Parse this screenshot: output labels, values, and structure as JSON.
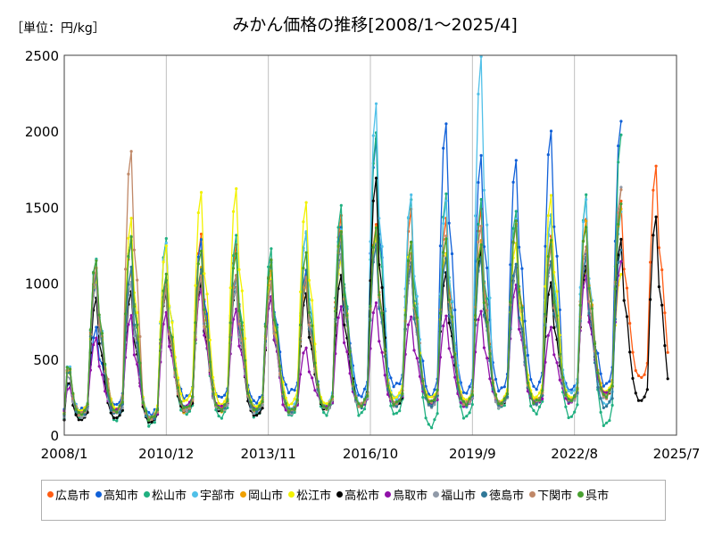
{
  "chart_data": {
    "type": "line",
    "title": "みかん価格の推移[2008/1～2025/4]",
    "unit_label": "［単位：円/kg］",
    "y_ticks": [
      "0",
      "500",
      "1000",
      "1500",
      "2000",
      "2500"
    ],
    "x_ticks": [
      "2008/1",
      "2010/12",
      "2013/11",
      "2016/10",
      "2019/9",
      "2022/8",
      "2025/7"
    ],
    "ylim": [
      0,
      2500
    ],
    "grid": "vertical",
    "legend_position": "bottom",
    "series_shape": "seasonal peaks each Oct-Nov, troughs in summer",
    "series": [
      {
        "name": "広島市",
        "color": "#ff5b12",
        "peaks": [
          1100,
          1280,
          1000,
          1320,
          1250,
          1150,
          1080,
          1440,
          1380,
          1480,
          1420,
          1480,
          1400,
          1300,
          1410,
          1530,
          1760
        ],
        "troughs": [
          140,
          150,
          110,
          180,
          170,
          170,
          150,
          170,
          190,
          210,
          220,
          230,
          210,
          220,
          230,
          260,
          380
        ]
      },
      {
        "name": "高知市",
        "color": "#1060d8",
        "peaks": [
          700,
          1290,
          960,
          1280,
          1060,
          1130,
          1080,
          1380,
          1940,
          1270,
          2060,
          1830,
          1810,
          2010,
          1180,
          2070,
          null
        ],
        "troughs": [
          170,
          200,
          140,
          250,
          250,
          220,
          290,
          200,
          260,
          330,
          260,
          280,
          300,
          310,
          300,
          330,
          null
        ]
      },
      {
        "name": "松山市",
        "color": "#20b080",
        "peaks": [
          1170,
          1300,
          1290,
          1000,
          1310,
          1220,
          1340,
          1510,
          1980,
          1560,
          1590,
          1540,
          1480,
          1450,
          1570,
          1980,
          null
        ],
        "troughs": [
          110,
          100,
          70,
          140,
          120,
          130,
          130,
          140,
          140,
          140,
          60,
          120,
          180,
          150,
          120,
          70,
          null
        ]
      },
      {
        "name": "宇部市",
        "color": "#50c0e8",
        "peaks": [
          1150,
          1280,
          1260,
          1030,
          1020,
          1010,
          1330,
          1340,
          2170,
          1570,
          1530,
          2480,
          1410,
          1440,
          1540,
          1460,
          null
        ],
        "troughs": [
          150,
          160,
          120,
          180,
          170,
          190,
          180,
          200,
          200,
          240,
          210,
          190,
          210,
          220,
          280,
          200,
          null
        ]
      },
      {
        "name": "岡山市",
        "color": "#f0a000",
        "peaks": [
          1050,
          1090,
          950,
          1100,
          1060,
          1070,
          1000,
          1350,
          1360,
          1200,
          1200,
          1270,
          1400,
          1270,
          1400,
          1500,
          null
        ],
        "troughs": [
          150,
          180,
          110,
          160,
          160,
          150,
          160,
          180,
          190,
          200,
          210,
          200,
          210,
          230,
          220,
          280,
          null
        ]
      },
      {
        "name": "松江市",
        "color": "#f2f200",
        "peaks": [
          1030,
          1420,
          1240,
          1610,
          1620,
          1010,
          1540,
          1170,
          1300,
          1270,
          1200,
          1180,
          1260,
          1590,
          1100,
          1050,
          null
        ],
        "troughs": [
          150,
          180,
          120,
          220,
          200,
          200,
          200,
          200,
          210,
          250,
          240,
          240,
          230,
          240,
          250,
          300,
          null
        ]
      },
      {
        "name": "高松市",
        "color": "#000000",
        "peaks": [
          900,
          940,
          930,
          1000,
          960,
          900,
          920,
          1040,
          1680,
          1100,
          1060,
          1210,
          1100,
          1000,
          1110,
          1290,
          1440
        ],
        "troughs": [
          100,
          110,
          80,
          150,
          150,
          120,
          150,
          160,
          180,
          180,
          200,
          190,
          190,
          210,
          220,
          260,
          230
        ]
      },
      {
        "name": "鳥取市",
        "color": "#9010a8",
        "peaks": [
          630,
          800,
          800,
          960,
          840,
          900,
          580,
          850,
          860,
          790,
          780,
          810,
          1000,
          700,
          1050,
          1150,
          null
        ],
        "troughs": [
          160,
          160,
          110,
          200,
          180,
          180,
          160,
          180,
          200,
          210,
          210,
          200,
          200,
          220,
          220,
          270,
          null
        ]
      },
      {
        "name": "福山市",
        "color": "#909aa8",
        "peaks": [
          1000,
          1000,
          950,
          1050,
          970,
          980,
          1030,
          1200,
          1250,
          1100,
          1180,
          1160,
          1100,
          1150,
          1180,
          1620,
          null
        ],
        "troughs": [
          120,
          140,
          110,
          170,
          160,
          150,
          150,
          170,
          190,
          200,
          190,
          200,
          190,
          210,
          220,
          250,
          null
        ]
      },
      {
        "name": "徳島市",
        "color": "#307898",
        "peaks": [
          1060,
          1100,
          1010,
          1080,
          1040,
          1000,
          1030,
          1260,
          1240,
          1130,
          1160,
          1170,
          1130,
          1150,
          1180,
          1230,
          null
        ],
        "troughs": [
          130,
          140,
          100,
          180,
          170,
          160,
          160,
          180,
          190,
          200,
          200,
          200,
          200,
          210,
          230,
          190,
          null
        ]
      },
      {
        "name": "下関市",
        "color": "#c08868",
        "peaks": [
          1090,
          1880,
          980,
          1050,
          1060,
          1000,
          1050,
          1320,
          1350,
          1200,
          1300,
          1380,
          1380,
          1230,
          1250,
          1610,
          null
        ],
        "troughs": [
          140,
          150,
          110,
          170,
          170,
          170,
          160,
          180,
          200,
          210,
          220,
          210,
          210,
          220,
          230,
          250,
          null
        ]
      },
      {
        "name": "呉市",
        "color": "#48a030",
        "peaks": [
          1160,
          1300,
          1050,
          1220,
          1200,
          1140,
          1200,
          1350,
          1360,
          1260,
          1300,
          1260,
          1400,
          1280,
          1380,
          1520,
          null
        ],
        "troughs": [
          140,
          160,
          110,
          180,
          170,
          170,
          160,
          180,
          200,
          210,
          220,
          210,
          210,
          220,
          230,
          260,
          null
        ]
      }
    ]
  }
}
